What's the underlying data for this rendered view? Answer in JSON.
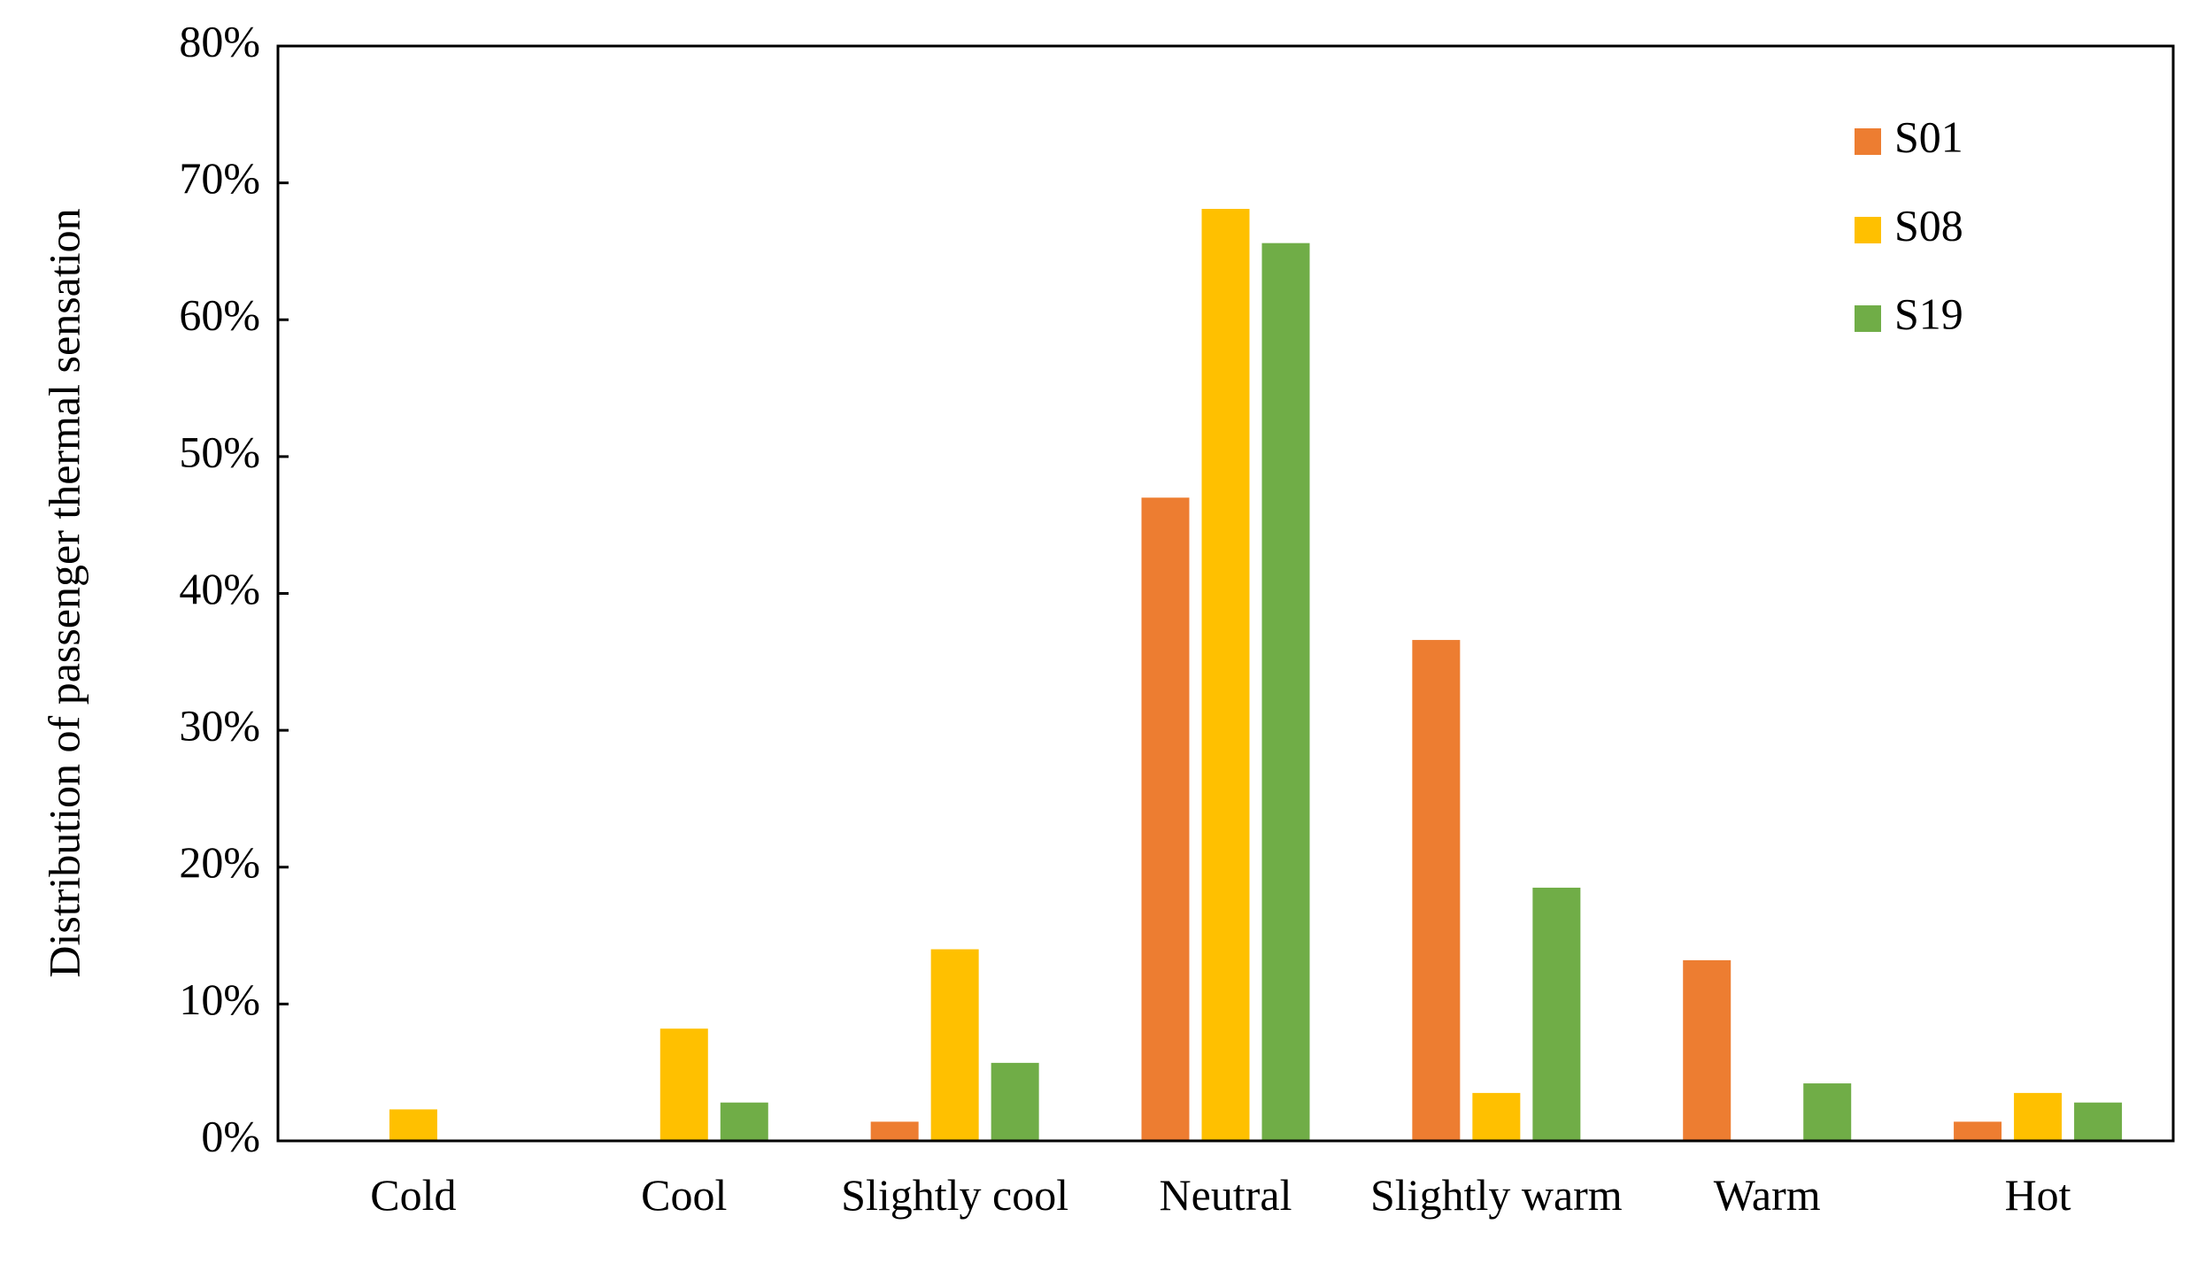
{
  "chart_data": {
    "type": "bar",
    "title": "",
    "xlabel": "",
    "ylabel": "Distribution of passenger thermal sensation",
    "categories": [
      "Cold",
      "Cool",
      "Slightly cool",
      "Neutral",
      "Slightly warm",
      "Warm",
      "Hot"
    ],
    "series": [
      {
        "name": "S01",
        "color": "#ED7D31",
        "values": [
          0,
          0,
          1.4,
          47.0,
          36.6,
          13.2,
          1.4
        ]
      },
      {
        "name": "S08",
        "color": "#FFC000",
        "values": [
          2.3,
          8.2,
          14.0,
          68.1,
          3.5,
          0,
          3.5
        ]
      },
      {
        "name": "S19",
        "color": "#70AD47",
        "values": [
          0,
          2.8,
          5.7,
          65.6,
          18.5,
          4.2,
          2.8
        ]
      }
    ],
    "ylim": [
      0,
      80
    ],
    "yticks": [
      0,
      10,
      20,
      30,
      40,
      50,
      60,
      70,
      80
    ],
    "ytick_labels": [
      "0%",
      "10%",
      "20%",
      "30%",
      "40%",
      "50%",
      "60%",
      "70%",
      "80%"
    ],
    "grid": false,
    "legend": {
      "position": "top-right",
      "entries": [
        "S01",
        "S08",
        "S19"
      ]
    }
  }
}
